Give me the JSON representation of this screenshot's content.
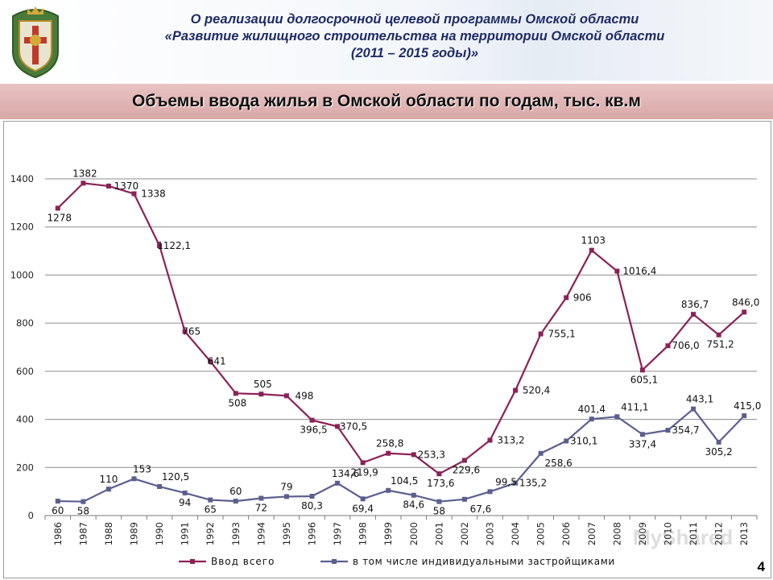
{
  "header": {
    "line1": "О реализации долгосрочной целевой программы Омской области",
    "line2": "«Развитие жилищного строительства на территории Омской области",
    "line3": "(2011 – 2015 годы)»"
  },
  "section_title": "Объемы ввода жилья в Омской области по годам, тыс. кв.м",
  "page_number": "4",
  "watermark": "MyShared",
  "colors": {
    "series1": "#8b2257",
    "series2": "#5b5f8f",
    "band": "#dba9a9",
    "header_text": "#1f2b66"
  },
  "chart_data": {
    "type": "line",
    "title": "Объемы ввода жилья в Омской области по годам, тыс. кв.м",
    "ylim": [
      0,
      1400
    ],
    "yticks": [
      0,
      200,
      400,
      600,
      800,
      1000,
      1200,
      1400
    ],
    "grid": true,
    "legend_position": "bottom",
    "x": [
      "1986",
      "1987",
      "1988",
      "1989",
      "1990",
      "1991",
      "1992",
      "1993",
      "1994",
      "1995",
      "1996",
      "1997",
      "1998",
      "1999",
      "2000",
      "2001",
      "2002",
      "2003",
      "2004",
      "2005",
      "2006",
      "2007",
      "2008",
      "2009",
      "2010",
      "2011",
      "2012",
      "2013"
    ],
    "series": [
      {
        "name": "Ввод всего",
        "values": [
          1278,
          1382,
          1370,
          1338,
          1122.1,
          765,
          641,
          508,
          505,
          498,
          396.5,
          370.5,
          219.9,
          258.8,
          253.3,
          173.6,
          229.6,
          313.2,
          520.4,
          755.1,
          906,
          1103,
          1016.4,
          605.1,
          706.0,
          836.7,
          751.2,
          846.0
        ],
        "labels": [
          "1278",
          "1382",
          "1370",
          "1338",
          "1122,1",
          "765",
          "641",
          "508",
          "505",
          "498",
          "396,5",
          "370,5",
          "219,9",
          "258,8",
          "253,3",
          "173,6",
          "229,6",
          "313,2",
          "520,4",
          "755,1",
          "906",
          "1103",
          "1016,4",
          "605,1",
          "706,0",
          "836,7",
          "751,2",
          "846,0"
        ]
      },
      {
        "name": "в том числе индивидуальными застройщиками",
        "values": [
          60,
          58,
          110,
          153,
          120.5,
          94,
          65,
          60,
          72,
          79,
          80.3,
          134.6,
          69.4,
          104.5,
          84.6,
          58,
          67.6,
          99.5,
          135.2,
          258.6,
          310.1,
          401.4,
          411.1,
          337.4,
          354.7,
          443.1,
          305.2,
          415.0
        ],
        "labels": [
          "60",
          "58",
          "110",
          "153",
          "120,5",
          "94",
          "65",
          "60",
          "72",
          "79",
          "80,3",
          "134,6",
          "69,4",
          "104,5",
          "84,6",
          "58",
          "67,6",
          "99,5",
          "135,2",
          "258,6",
          "310,1",
          "401,4",
          "411,1",
          "337,4",
          "354,7",
          "443,1",
          "305,2",
          "415,0"
        ]
      }
    ]
  }
}
